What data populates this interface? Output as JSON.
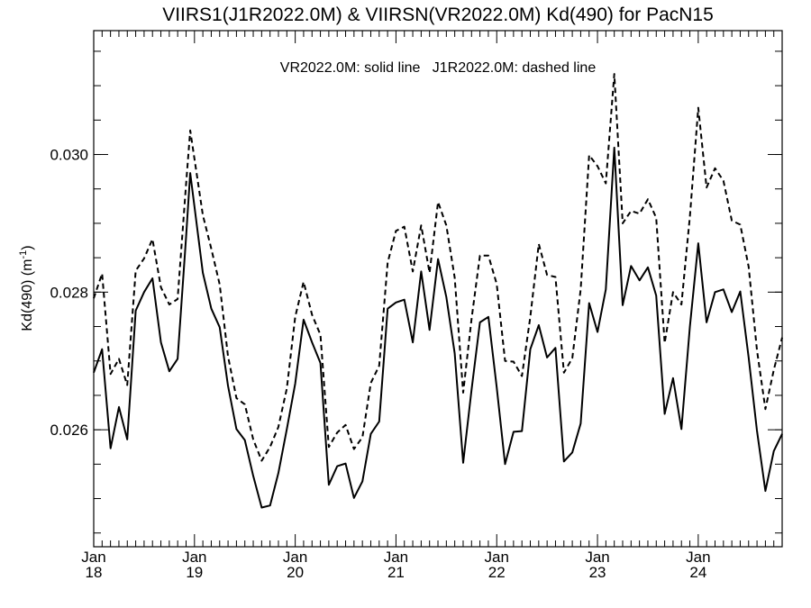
{
  "chart_data": {
    "type": "line",
    "title": "VIIRS1(J1R2022.0M) & VIIRSN(VR2022.0M)  Kd(490) for PacN15",
    "annotation": "VR2022.0M: solid line   J1R2022.0M: dashed line",
    "xlabel": "",
    "ylabel": "Kd(490) (m",
    "ylabel_superscript": "-1",
    "ylabel_suffix": ")",
    "xlim": [
      2018.0,
      2024.833
    ],
    "ylim": [
      0.0243,
      0.0318
    ],
    "x_ticks": [
      {
        "value": 2018,
        "month": "Jan",
        "year": "18"
      },
      {
        "value": 2019,
        "month": "Jan",
        "year": "19"
      },
      {
        "value": 2020,
        "month": "Jan",
        "year": "20"
      },
      {
        "value": 2021,
        "month": "Jan",
        "year": "21"
      },
      {
        "value": 2022,
        "month": "Jan",
        "year": "22"
      },
      {
        "value": 2023,
        "month": "Jan",
        "year": "23"
      },
      {
        "value": 2024,
        "month": "Jan",
        "year": "24"
      }
    ],
    "y_ticks": [
      {
        "value": 0.026,
        "label": "0.026"
      },
      {
        "value": 0.028,
        "label": "0.028"
      },
      {
        "value": 0.03,
        "label": "0.030"
      }
    ],
    "grid": false,
    "series": [
      {
        "name": "VR2022.0M",
        "style": "solid",
        "color": "#000000",
        "x": [
          2018.0,
          2018.083,
          2018.167,
          2018.25,
          2018.333,
          2018.417,
          2018.5,
          2018.583,
          2018.667,
          2018.75,
          2018.833,
          2018.917,
          2018.958,
          2019.083,
          2019.167,
          2019.25,
          2019.333,
          2019.417,
          2019.5,
          2019.583,
          2019.667,
          2019.75,
          2019.833,
          2019.917,
          2020.0,
          2020.083,
          2020.167,
          2020.25,
          2020.333,
          2020.417,
          2020.5,
          2020.583,
          2020.667,
          2020.75,
          2020.833,
          2020.917,
          2021.0,
          2021.083,
          2021.167,
          2021.25,
          2021.333,
          2021.417,
          2021.5,
          2021.583,
          2021.667,
          2021.75,
          2021.833,
          2021.917,
          2022.0,
          2022.083,
          2022.167,
          2022.25,
          2022.333,
          2022.417,
          2022.5,
          2022.583,
          2022.667,
          2022.75,
          2022.833,
          2022.917,
          2023.0,
          2023.083,
          2023.167,
          2023.25,
          2023.333,
          2023.417,
          2023.5,
          2023.583,
          2023.667,
          2023.75,
          2023.833,
          2023.917,
          2024.0,
          2024.083,
          2024.167,
          2024.25,
          2024.333,
          2024.417,
          2024.5,
          2024.583,
          2024.667,
          2024.75,
          2024.833
        ],
        "y": [
          0.02683,
          0.02717,
          0.02573,
          0.02633,
          0.02586,
          0.02773,
          0.028,
          0.0282,
          0.02727,
          0.02685,
          0.02703,
          0.0288,
          0.02973,
          0.02828,
          0.02776,
          0.02749,
          0.02664,
          0.02601,
          0.02585,
          0.02533,
          0.02487,
          0.0249,
          0.02537,
          0.02601,
          0.02667,
          0.0276,
          0.02727,
          0.02697,
          0.0252,
          0.02547,
          0.02551,
          0.02501,
          0.02525,
          0.02594,
          0.02612,
          0.02776,
          0.02785,
          0.02789,
          0.02727,
          0.0283,
          0.02745,
          0.02848,
          0.02793,
          0.02711,
          0.02552,
          0.02658,
          0.02756,
          0.02764,
          0.02662,
          0.0255,
          0.02597,
          0.02598,
          0.02717,
          0.02752,
          0.02705,
          0.02719,
          0.02554,
          0.02567,
          0.02609,
          0.02784,
          0.02742,
          0.02804,
          0.0301,
          0.02781,
          0.02838,
          0.02817,
          0.02836,
          0.02795,
          0.02623,
          0.02675,
          0.02601,
          0.0275,
          0.02871,
          0.02756,
          0.028,
          0.02804,
          0.02771,
          0.02801,
          0.02705,
          0.02599,
          0.02511,
          0.02569,
          0.02594
        ]
      },
      {
        "name": "J1R2022.0M",
        "style": "dashed",
        "color": "#000000",
        "x": [
          2018.0,
          2018.083,
          2018.167,
          2018.25,
          2018.333,
          2018.417,
          2018.5,
          2018.583,
          2018.667,
          2018.75,
          2018.833,
          2018.917,
          2018.958,
          2019.083,
          2019.167,
          2019.25,
          2019.333,
          2019.417,
          2019.5,
          2019.583,
          2019.667,
          2019.75,
          2019.833,
          2019.917,
          2020.0,
          2020.083,
          2020.167,
          2020.25,
          2020.333,
          2020.417,
          2020.5,
          2020.583,
          2020.667,
          2020.75,
          2020.833,
          2020.917,
          2021.0,
          2021.083,
          2021.167,
          2021.25,
          2021.333,
          2021.417,
          2021.5,
          2021.583,
          2021.667,
          2021.75,
          2021.833,
          2021.917,
          2022.0,
          2022.083,
          2022.167,
          2022.25,
          2022.333,
          2022.417,
          2022.5,
          2022.583,
          2022.667,
          2022.75,
          2022.833,
          2022.917,
          2023.0,
          2023.083,
          2023.167,
          2023.25,
          2023.333,
          2023.417,
          2023.5,
          2023.583,
          2023.667,
          2023.75,
          2023.833,
          2023.917,
          2024.0,
          2024.083,
          2024.167,
          2024.25,
          2024.333,
          2024.417,
          2024.5,
          2024.583,
          2024.667,
          2024.75,
          2024.833
        ],
        "y": [
          0.02791,
          0.02827,
          0.02681,
          0.02703,
          0.02665,
          0.02831,
          0.02849,
          0.02877,
          0.02807,
          0.02782,
          0.0279,
          0.02957,
          0.03035,
          0.02912,
          0.02863,
          0.02811,
          0.02707,
          0.02646,
          0.02637,
          0.02586,
          0.02555,
          0.02575,
          0.02604,
          0.0266,
          0.02764,
          0.02815,
          0.02767,
          0.02738,
          0.02575,
          0.02596,
          0.02607,
          0.02572,
          0.02589,
          0.02668,
          0.02693,
          0.02843,
          0.02889,
          0.02895,
          0.0283,
          0.02897,
          0.02828,
          0.02931,
          0.02897,
          0.02821,
          0.02654,
          0.02761,
          0.02853,
          0.02853,
          0.02812,
          0.027,
          0.02699,
          0.02678,
          0.02764,
          0.0287,
          0.02825,
          0.02822,
          0.02683,
          0.02704,
          0.02804,
          0.02999,
          0.02983,
          0.02958,
          0.03117,
          0.029,
          0.02918,
          0.02914,
          0.02935,
          0.02908,
          0.02726,
          0.028,
          0.02782,
          0.0291,
          0.03068,
          0.02952,
          0.0298,
          0.02962,
          0.02904,
          0.02898,
          0.02837,
          0.02716,
          0.0263,
          0.02687,
          0.02734
        ]
      }
    ]
  }
}
